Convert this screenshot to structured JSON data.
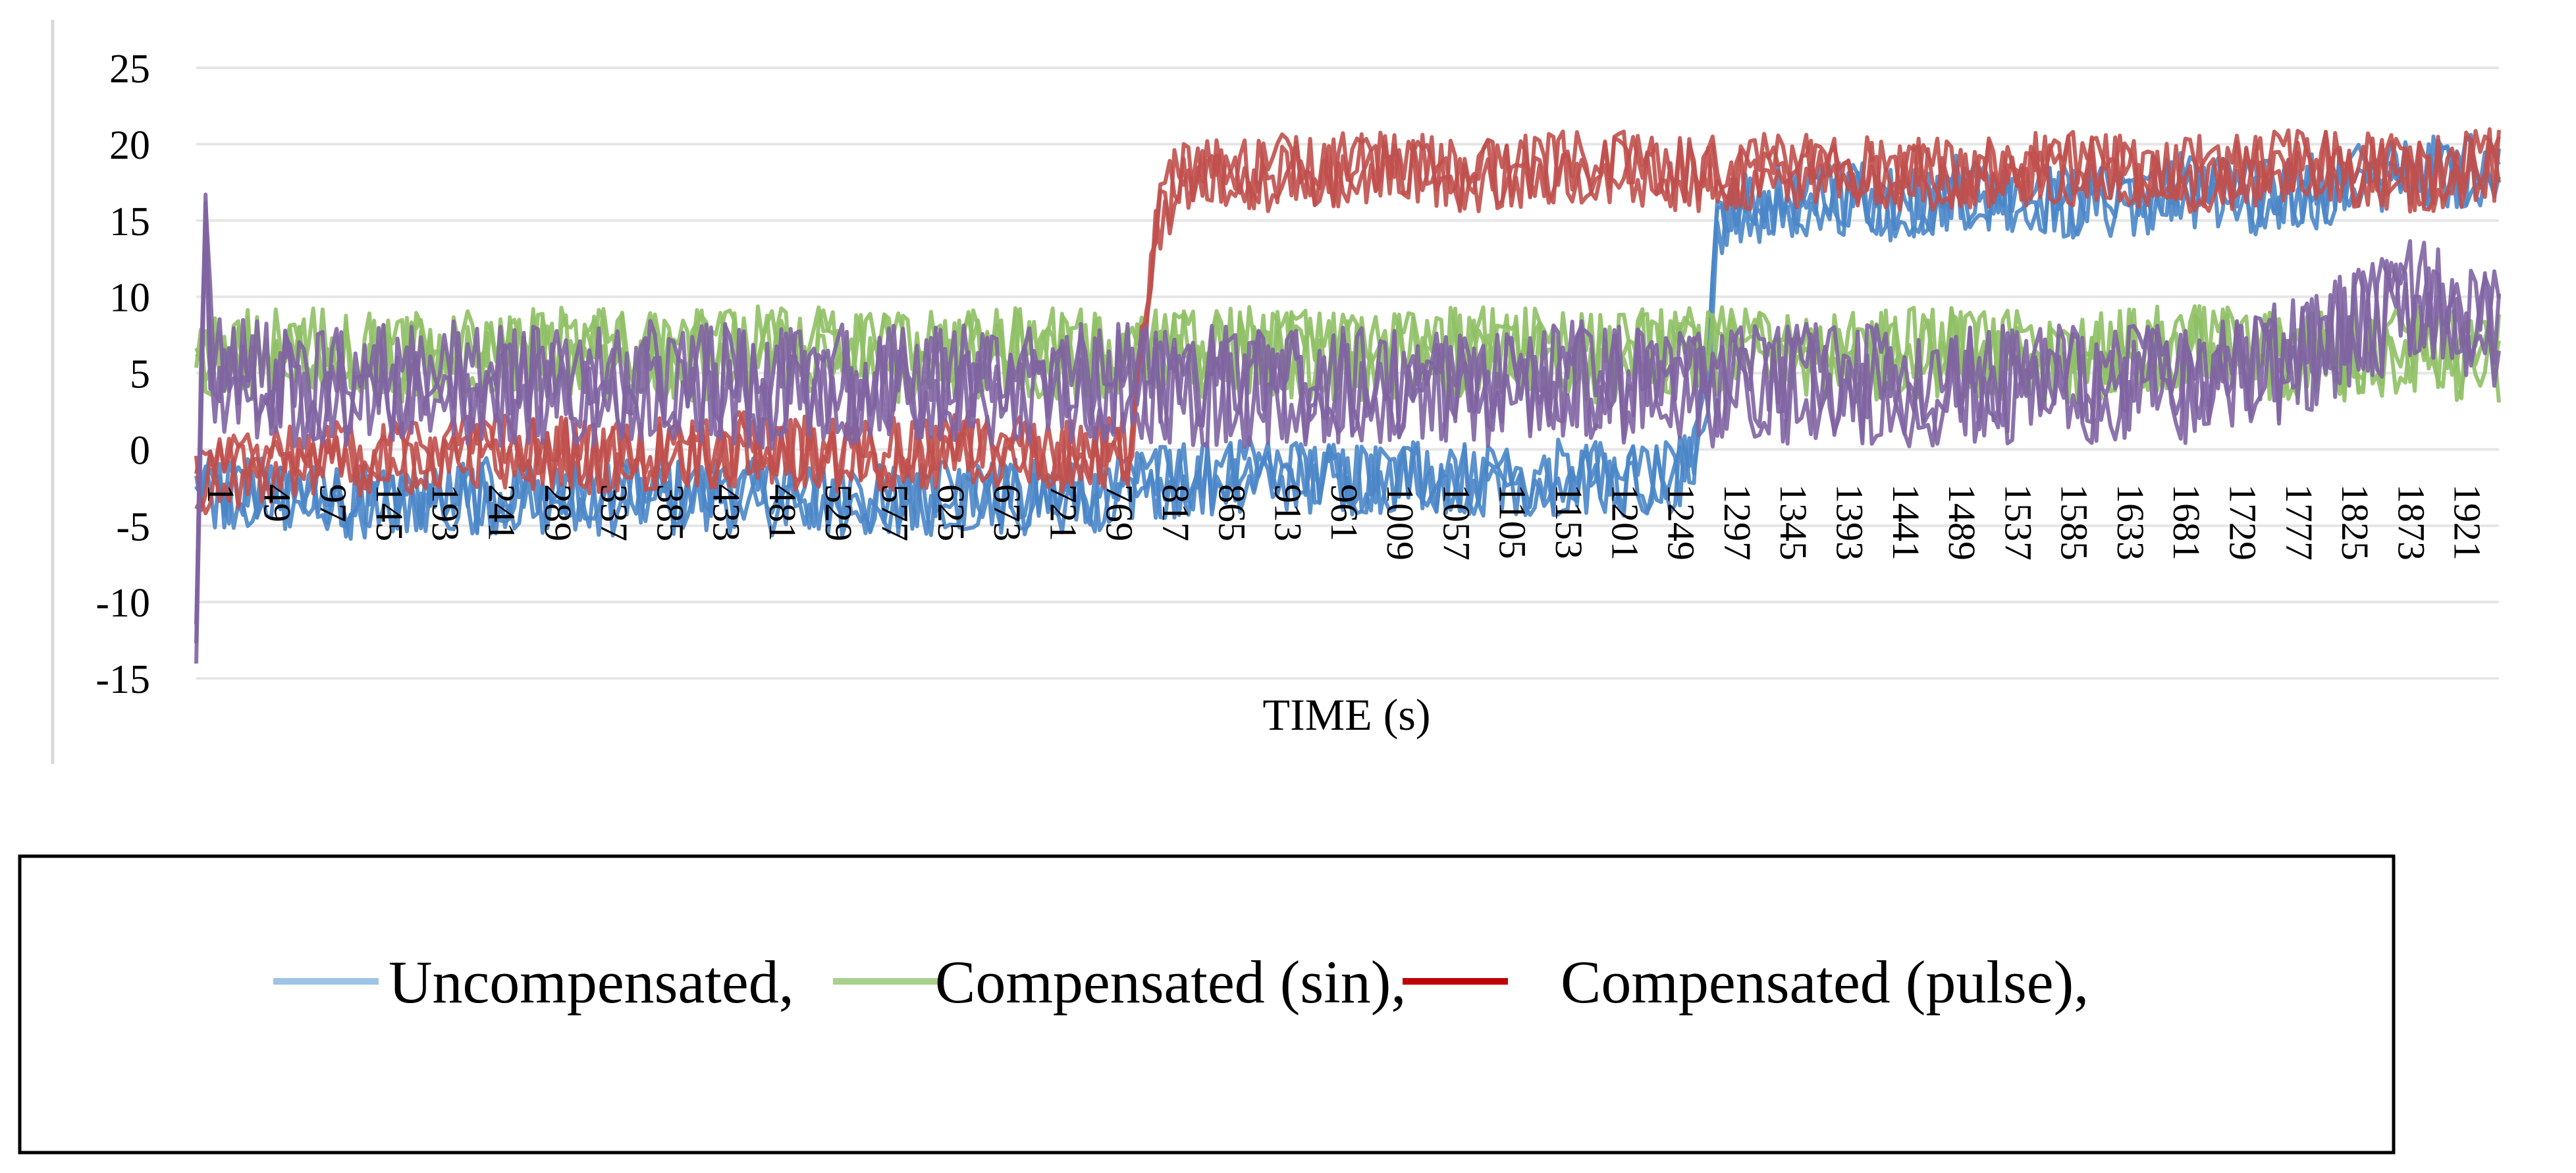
{
  "chart_data": {
    "type": "line",
    "xlabel": "TIME (s)",
    "ylabel": "",
    "ylim": [
      -15,
      25
    ],
    "yticks": [
      -15,
      -10,
      -5,
      0,
      5,
      10,
      15,
      20,
      25
    ],
    "xlim": [
      1,
      1969
    ],
    "xticks": [
      1,
      49,
      97,
      145,
      193,
      241,
      289,
      337,
      385,
      433,
      481,
      529,
      577,
      625,
      673,
      721,
      769,
      817,
      865,
      913,
      961,
      1009,
      1057,
      1105,
      1153,
      1201,
      1249,
      1297,
      1345,
      1393,
      1441,
      1489,
      1537,
      1585,
      1633,
      1681,
      1729,
      1777,
      1825,
      1873,
      1921
    ],
    "grid": "horizontal",
    "legend_position": "bottom",
    "series": [
      {
        "name": "Uncompensated,",
        "legend_label": "Uncompensated,",
        "line_color": "#4a86c8",
        "legend_color": "#9dc3e6",
        "x": [
          1,
          60,
          160,
          260,
          360,
          460,
          560,
          660,
          760,
          820,
          860,
          920,
          980,
          1040,
          1100,
          1160,
          1220,
          1280,
          1295,
          1300,
          1340,
          1400,
          1460,
          1520,
          1580,
          1640,
          1700,
          1760,
          1820,
          1880,
          1960
        ],
        "y": [
          -2.5,
          -3,
          -3.5,
          -3,
          -3.2,
          -3,
          -3.5,
          -3,
          -3.2,
          -2,
          -2,
          -1.5,
          -2,
          -1.5,
          -2,
          -1.8,
          -2,
          -1.5,
          5,
          15,
          16,
          16.5,
          16,
          17,
          16.5,
          16,
          17,
          16.5,
          17,
          18,
          18.5
        ],
        "noise": 2.5
      },
      {
        "name": "Compensated (sin),",
        "legend_label": "Compensated (sin),",
        "line_color": "#8fc065",
        "legend_color": "#a9d18e",
        "x": [
          1,
          100,
          200,
          300,
          400,
          500,
          600,
          700,
          800,
          900,
          1000,
          1100,
          1200,
          1300,
          1400,
          1500,
          1600,
          1700,
          1800,
          1900,
          1960
        ],
        "y": [
          6,
          6.5,
          6,
          6.5,
          6,
          6.5,
          6,
          6.5,
          6,
          6.5,
          6,
          6.5,
          6,
          6.5,
          6,
          6.5,
          6,
          6.5,
          6,
          6.5,
          6
        ],
        "noise": 3
      },
      {
        "name": "Compensated (pulse),",
        "legend_label": "Compensated (pulse),",
        "line_color": "#c0504d",
        "legend_color": "#c00000",
        "x": [
          1,
          60,
          160,
          260,
          360,
          460,
          560,
          660,
          760,
          800,
          820,
          840,
          900,
          1000,
          1100,
          1200,
          1300,
          1400,
          1500,
          1600,
          1700,
          1800,
          1900,
          1960
        ],
        "y": [
          -2,
          -1,
          -0.5,
          0,
          -0.5,
          0,
          -0.5,
          0,
          -0.5,
          0,
          14,
          18,
          18,
          18.5,
          18,
          18.5,
          18,
          18.5,
          18,
          18.5,
          18,
          18.5,
          18,
          18.5
        ],
        "noise": 2.5
      },
      {
        "line_color": "#8064a2",
        "x": [
          1,
          8,
          10,
          14,
          100,
          200,
          300,
          400,
          500,
          600,
          700,
          800,
          900,
          1000,
          1100,
          1200,
          1300,
          1400,
          1500,
          1600,
          1700,
          1800,
          1900,
          1960
        ],
        "y": [
          -15,
          19,
          14,
          5,
          4,
          4.5,
          4,
          4.5,
          4,
          4.5,
          4,
          4.5,
          4,
          4.5,
          4,
          4.5,
          4,
          4.5,
          4,
          4.5,
          4,
          6,
          10,
          8
        ],
        "noise": 4
      }
    ]
  }
}
